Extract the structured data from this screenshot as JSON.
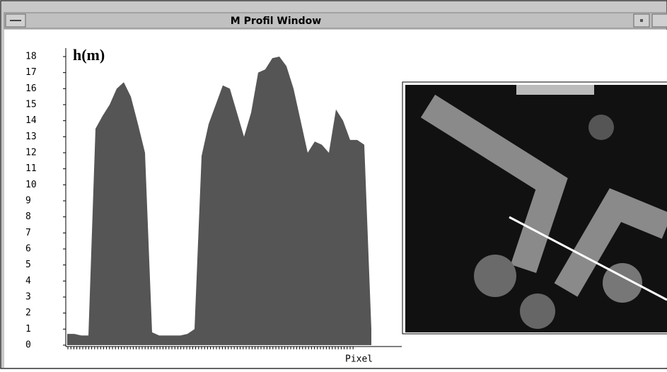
{
  "window": {
    "title": "M Profil Window"
  },
  "chart_data": {
    "type": "area",
    "y_label": "h(m)",
    "x_label": "Pixel",
    "color": "#555555",
    "values": [
      0.7,
      0.7,
      0.6,
      0.6,
      13.5,
      14.3,
      15,
      16,
      16.4,
      15.5,
      13.8,
      12,
      0.8,
      0.6,
      0.6,
      0.6,
      0.6,
      0.7,
      1,
      11.8,
      13.8,
      15,
      16.2,
      16,
      14.5,
      13,
      14.5,
      17,
      17.2,
      17.9,
      18,
      17.4,
      16,
      14,
      12,
      12.7,
      12.5,
      12,
      14.7,
      14,
      12.8,
      12.8,
      12.5,
      1
    ],
    "ylim": [
      0,
      18
    ],
    "yticks": [
      0,
      1,
      2,
      3,
      4,
      5,
      6,
      7,
      8,
      9,
      10,
      11,
      12,
      13,
      14,
      15,
      16,
      17,
      18
    ]
  }
}
